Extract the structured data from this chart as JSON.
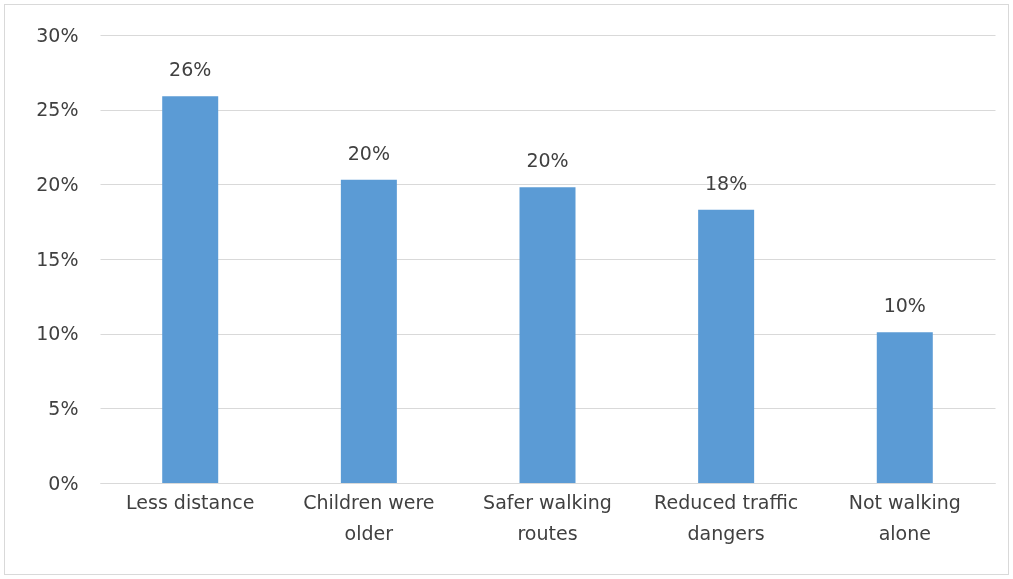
{
  "chart_data": {
    "type": "bar",
    "categories": [
      "Less distance",
      "Children were older",
      "Safer walking routes",
      "Reduced traffic dangers",
      "Not walking alone"
    ],
    "values": [
      25.9,
      20.3,
      19.8,
      18.3,
      10.1
    ],
    "value_labels": [
      "26%",
      "20%",
      "20%",
      "18%",
      "10%"
    ],
    "color": "#5b9bd5",
    "ylim": [
      0,
      30
    ],
    "yticks": [
      {
        "value": 0,
        "label": "0%"
      },
      {
        "value": 5,
        "label": "5%"
      },
      {
        "value": 10,
        "label": "10%"
      },
      {
        "value": 15,
        "label": "15%"
      },
      {
        "value": 20,
        "label": "20%"
      },
      {
        "value": 25,
        "label": "25%"
      },
      {
        "value": 30,
        "label": "30%"
      }
    ],
    "grid": "y"
  }
}
